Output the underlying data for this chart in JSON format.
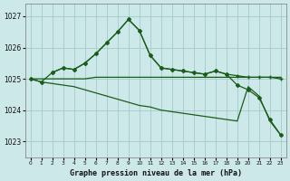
{
  "title": "Graphe pression niveau de la mer (hPa)",
  "background_color": "#cde8e8",
  "grid_color": "#aacece",
  "line_color": "#1a5c1a",
  "xlim": [
    -0.5,
    23.5
  ],
  "ylim": [
    1022.5,
    1027.4
  ],
  "yticks": [
    1023,
    1024,
    1025,
    1026,
    1027
  ],
  "xticks": [
    0,
    1,
    2,
    3,
    4,
    5,
    6,
    7,
    8,
    9,
    10,
    11,
    12,
    13,
    14,
    15,
    16,
    17,
    18,
    19,
    20,
    21,
    22,
    23
  ],
  "series_flat_x": [
    0,
    1,
    2,
    3,
    4,
    5,
    6,
    7,
    8,
    9,
    10,
    11,
    12,
    13,
    14,
    15,
    16,
    17,
    18,
    19,
    20,
    21,
    22,
    23
  ],
  "series_flat_y": [
    1025.0,
    1025.0,
    1025.0,
    1025.0,
    1025.0,
    1025.0,
    1025.05,
    1025.05,
    1025.05,
    1025.05,
    1025.05,
    1025.05,
    1025.05,
    1025.05,
    1025.05,
    1025.05,
    1025.05,
    1025.05,
    1025.05,
    1025.05,
    1025.05,
    1025.05,
    1025.05,
    1025.05
  ],
  "series_descend_x": [
    0,
    1,
    2,
    3,
    4,
    5,
    6,
    7,
    8,
    9,
    10,
    11,
    12,
    13,
    14,
    15,
    16,
    17,
    18,
    19,
    20,
    21,
    22,
    23
  ],
  "series_descend_y": [
    1025.0,
    1024.9,
    1024.85,
    1024.8,
    1024.75,
    1024.65,
    1024.55,
    1024.45,
    1024.35,
    1024.25,
    1024.15,
    1024.1,
    1024.0,
    1023.95,
    1023.9,
    1023.85,
    1023.8,
    1023.75,
    1023.7,
    1023.65,
    1024.75,
    1024.45,
    1023.65,
    1023.2
  ],
  "series_peak_x": [
    0,
    1,
    2,
    3,
    4,
    5,
    6,
    7,
    8,
    9,
    10,
    11,
    12,
    13,
    14,
    15,
    16,
    17,
    18,
    19,
    20,
    21,
    22,
    23
  ],
  "series_peak_y": [
    1025.0,
    1024.9,
    1025.2,
    1025.35,
    1025.3,
    1025.5,
    1025.8,
    1026.15,
    1026.5,
    1026.9,
    1026.55,
    1025.75,
    1025.35,
    1025.3,
    1025.25,
    1025.2,
    1025.15,
    1025.25,
    1025.15,
    1024.8,
    1024.65,
    1024.4,
    1023.7,
    1023.2
  ],
  "series_cross_x": [
    2,
    3,
    4,
    5,
    6,
    7,
    8,
    9,
    10,
    11,
    12,
    13,
    14,
    15,
    16,
    17,
    18,
    19,
    20,
    21,
    22,
    23
  ],
  "series_cross_y": [
    1025.2,
    1025.35,
    1025.3,
    1025.5,
    1025.8,
    1026.15,
    1026.5,
    1026.9,
    1026.55,
    1025.75,
    1025.35,
    1025.3,
    1025.25,
    1025.2,
    1025.15,
    1025.25,
    1025.15,
    1025.1,
    1025.05,
    1025.05,
    1025.05,
    1025.0
  ]
}
